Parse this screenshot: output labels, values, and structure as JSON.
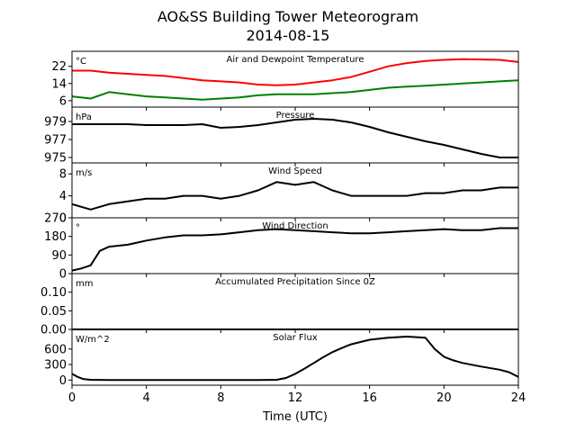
{
  "figure": {
    "title_line1": "AO&SS Building Tower Meteorogram",
    "title_line2": "2014-08-15",
    "xlabel": "Time (UTC)"
  },
  "chart_data": [
    {
      "type": "line",
      "title": "Air and Dewpoint Temperature",
      "unit": "°C",
      "ylim": [
        3,
        29
      ],
      "yticks": [
        6,
        14,
        22
      ],
      "xlim": [
        0,
        24
      ],
      "series": [
        {
          "color": "#ff0000",
          "x": [
            0,
            1,
            2,
            3,
            4,
            5,
            6,
            7,
            8,
            9,
            10,
            11,
            12,
            13,
            14,
            15,
            16,
            17,
            18,
            19,
            20,
            21,
            22,
            23,
            24
          ],
          "y": [
            20,
            20,
            19,
            18.5,
            18,
            17.5,
            16.5,
            15.5,
            15,
            14.5,
            13.5,
            13.2,
            13.5,
            14.5,
            15.5,
            17,
            19.5,
            22,
            23.5,
            24.5,
            25,
            25.3,
            25.2,
            25,
            24
          ]
        },
        {
          "color": "#008000",
          "x": [
            0,
            1,
            2,
            3,
            4,
            5,
            6,
            7,
            8,
            9,
            10,
            11,
            12,
            13,
            14,
            15,
            16,
            17,
            18,
            19,
            20,
            21,
            22,
            23,
            24
          ],
          "y": [
            8,
            7,
            10,
            9,
            8,
            7.5,
            7,
            6.5,
            7,
            7.5,
            8.5,
            9,
            9,
            9,
            9.5,
            10,
            11,
            12,
            12.5,
            13,
            13.5,
            14,
            14.5,
            15,
            15.5
          ]
        }
      ]
    },
    {
      "type": "line",
      "title": "Pressure",
      "unit": "hPa",
      "ylim": [
        974.4,
        980.6
      ],
      "yticks": [
        975,
        977,
        979
      ],
      "xlim": [
        0,
        24
      ],
      "series": [
        {
          "color": "#000000",
          "x": [
            0,
            1,
            2,
            3,
            4,
            5,
            6,
            7,
            8,
            9,
            10,
            11,
            12,
            13,
            14,
            15,
            16,
            17,
            18,
            19,
            20,
            21,
            22,
            23,
            24
          ],
          "y": [
            978.7,
            978.7,
            978.7,
            978.7,
            978.6,
            978.6,
            978.6,
            978.7,
            978.3,
            978.4,
            978.6,
            978.9,
            979.2,
            979.3,
            979.2,
            978.9,
            978.4,
            977.8,
            977.3,
            976.8,
            976.4,
            975.9,
            975.4,
            975.0,
            975.0
          ]
        }
      ]
    },
    {
      "type": "line",
      "title": "Wind Speed",
      "unit": "m/s",
      "ylim": [
        0,
        10
      ],
      "yticks": [
        0,
        4,
        8
      ],
      "xlim": [
        0,
        24
      ],
      "series": [
        {
          "color": "#000000",
          "x": [
            0,
            1,
            2,
            3,
            4,
            5,
            6,
            7,
            8,
            9,
            10,
            11,
            12,
            13,
            14,
            15,
            16,
            17,
            18,
            19,
            20,
            21,
            22,
            23,
            24
          ],
          "y": [
            2.5,
            1.5,
            2.5,
            3,
            3.5,
            3.5,
            4,
            4,
            3.5,
            4,
            5,
            6.5,
            6,
            6.5,
            5,
            4,
            4,
            4,
            4,
            4.5,
            4.5,
            5,
            5,
            5.5,
            5.5
          ]
        }
      ]
    },
    {
      "type": "line",
      "title": "Wind Direction",
      "unit": "°",
      "ylim": [
        0,
        270
      ],
      "yticks": [
        0,
        90,
        180,
        270
      ],
      "xlim": [
        0,
        24
      ],
      "series": [
        {
          "color": "#000000",
          "x": [
            0,
            0.5,
            1,
            1.5,
            2,
            3,
            4,
            5,
            6,
            7,
            8,
            9,
            10,
            11,
            12,
            13,
            14,
            15,
            16,
            17,
            18,
            19,
            20,
            21,
            22,
            23,
            24
          ],
          "y": [
            15,
            25,
            40,
            110,
            130,
            140,
            160,
            175,
            185,
            185,
            190,
            200,
            210,
            215,
            210,
            205,
            200,
            195,
            195,
            200,
            205,
            210,
            215,
            210,
            210,
            220,
            220
          ]
        }
      ]
    },
    {
      "type": "line",
      "title": "Accumulated Precipitation Since 0Z",
      "unit": "mm",
      "ylim": [
        0,
        0.15
      ],
      "yticks": [
        0.0,
        0.05,
        0.1
      ],
      "ytick_labels": [
        "0.00",
        "0.05",
        "0.10"
      ],
      "xlim": [
        0,
        24
      ],
      "series": [
        {
          "color": "#000000",
          "x": [
            0,
            24
          ],
          "y": [
            0,
            0
          ]
        }
      ]
    },
    {
      "type": "line",
      "title": "Solar Flux",
      "unit": "W/m^2",
      "ylim": [
        -100,
        980
      ],
      "yticks": [
        0,
        300,
        600
      ],
      "xlim": [
        0,
        24
      ],
      "series": [
        {
          "color": "#000000",
          "x": [
            0,
            0.3,
            0.6,
            1,
            2,
            4,
            6,
            8,
            10,
            11,
            11.5,
            12,
            12.5,
            13,
            13.5,
            14,
            14.5,
            15,
            16,
            17,
            18,
            19,
            19.5,
            20,
            20.5,
            21,
            22,
            23,
            23.5,
            24
          ],
          "y": [
            120,
            60,
            20,
            5,
            0,
            0,
            0,
            0,
            0,
            5,
            40,
            120,
            220,
            330,
            440,
            540,
            620,
            690,
            780,
            820,
            840,
            820,
            600,
            450,
            380,
            330,
            260,
            200,
            150,
            60
          ]
        }
      ]
    }
  ],
  "xticks": [
    0,
    4,
    8,
    12,
    16,
    20,
    24
  ]
}
